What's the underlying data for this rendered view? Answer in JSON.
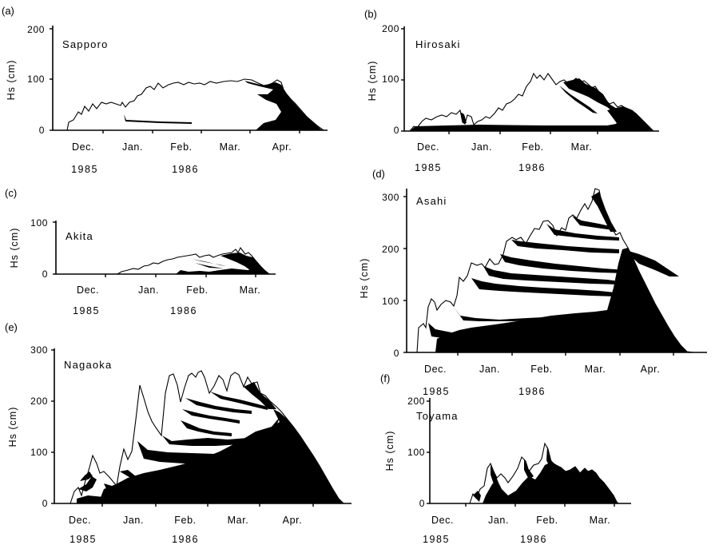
{
  "chart_data": [
    {
      "type": "area",
      "panel": "(a)",
      "station": "Sapporo",
      "ylabel": "Hs (cm)",
      "yticks": [
        "0",
        "100",
        "200"
      ],
      "ylim": [
        0,
        200
      ],
      "months": [
        "Dec.",
        "Jan.",
        "Feb.",
        "Mar.",
        "Apr."
      ],
      "years": [
        "1985",
        "1986"
      ],
      "x": [
        -5,
        0,
        5,
        10,
        15,
        20,
        25,
        30,
        35,
        40,
        45,
        50,
        55,
        60,
        65,
        70,
        75,
        80,
        85,
        90,
        95,
        100,
        105,
        110,
        115,
        118
      ],
      "snow_depth": [
        0,
        20,
        35,
        45,
        50,
        50,
        45,
        60,
        70,
        85,
        90,
        95,
        95,
        98,
        100,
        102,
        100,
        95,
        100,
        98,
        85,
        65,
        40,
        15,
        3,
        0
      ]
    },
    {
      "type": "area",
      "panel": "(b)",
      "station": "Hirosaki",
      "ylabel": "Hs (cm)",
      "yticks": [
        "0",
        "100",
        "200"
      ],
      "ylim": [
        0,
        200
      ],
      "months": [
        "Dec.",
        "Jan.",
        "Feb.",
        "Mar."
      ],
      "years": [
        "1985",
        "1986"
      ],
      "x": [
        -7,
        -5,
        0,
        5,
        10,
        15,
        20,
        25,
        30,
        35,
        40,
        45,
        50,
        55,
        60,
        65,
        70,
        75,
        80,
        85,
        90,
        95,
        100,
        106
      ],
      "snow_depth": [
        0,
        5,
        25,
        30,
        35,
        35,
        20,
        30,
        45,
        60,
        80,
        110,
        100,
        105,
        95,
        100,
        90,
        85,
        70,
        50,
        40,
        25,
        10,
        0
      ]
    },
    {
      "type": "area",
      "panel": "(c)",
      "station": "Akita",
      "ylabel": "Hs (cm)",
      "yticks": [
        "0",
        "100"
      ],
      "ylim": [
        0,
        100
      ],
      "months": [
        "Dec.",
        "Jan.",
        "Feb.",
        "Mar."
      ],
      "years": [
        "1985",
        "1986"
      ],
      "x": [
        14,
        20,
        25,
        30,
        35,
        40,
        45,
        50,
        55,
        60,
        65,
        70,
        75,
        80,
        84
      ],
      "snow_depth": [
        0,
        5,
        10,
        18,
        25,
        30,
        35,
        38,
        35,
        40,
        45,
        50,
        48,
        35,
        0
      ]
    },
    {
      "type": "area",
      "panel": "(d)",
      "station": "Asahi",
      "ylabel": "Hs (cm)",
      "yticks": [
        "0",
        "100",
        "200",
        "300"
      ],
      "ylim": [
        0,
        300
      ],
      "months": [
        "Dec.",
        "Jan.",
        "Feb.",
        "Mar.",
        "Apr."
      ],
      "years": [
        "1985",
        "1986"
      ],
      "x": [
        -20,
        -15,
        -10,
        -5,
        0,
        5,
        10,
        15,
        20,
        25,
        30,
        35,
        40,
        45,
        50,
        55,
        60,
        65,
        70,
        75,
        80,
        85,
        90,
        95,
        100,
        105,
        110,
        115,
        120,
        125,
        130
      ],
      "snow_depth": [
        0,
        50,
        90,
        100,
        80,
        90,
        110,
        150,
        170,
        160,
        180,
        200,
        210,
        230,
        250,
        240,
        250,
        270,
        290,
        310,
        270,
        250,
        240,
        230,
        210,
        180,
        150,
        110,
        70,
        30,
        0
      ]
    },
    {
      "type": "area",
      "panel": "(e)",
      "station": "Nagaoka",
      "ylabel": "Hs (cm)",
      "yticks": [
        "0",
        "100",
        "200",
        "300"
      ],
      "ylim": [
        0,
        300
      ],
      "months": [
        "Dec.",
        "Jan.",
        "Feb.",
        "Mar.",
        "Apr."
      ],
      "years": [
        "1985",
        "1986"
      ],
      "x": [
        -5,
        0,
        5,
        10,
        15,
        20,
        25,
        30,
        35,
        40,
        45,
        50,
        55,
        60,
        65,
        70,
        75,
        80,
        85,
        90,
        95,
        100,
        105,
        110,
        115,
        120
      ],
      "snow_depth": [
        0,
        25,
        90,
        50,
        40,
        110,
        220,
        120,
        250,
        160,
        240,
        250,
        220,
        250,
        250,
        240,
        240,
        220,
        200,
        190,
        170,
        150,
        110,
        70,
        30,
        0
      ]
    },
    {
      "type": "area",
      "panel": "(f)",
      "station": "Toyama",
      "ylabel": "Hs (cm)",
      "yticks": [
        "0",
        "100",
        "200"
      ],
      "ylim": [
        0,
        200
      ],
      "months": [
        "Dec.",
        "Jan.",
        "Feb.",
        "Mar."
      ],
      "years": [
        "1985",
        "1986"
      ],
      "x": [
        25,
        30,
        35,
        40,
        45,
        50,
        55,
        60,
        65,
        70,
        75,
        80,
        85,
        90,
        95,
        100,
        102
      ],
      "snow_depth": [
        0,
        25,
        70,
        45,
        55,
        85,
        60,
        110,
        80,
        60,
        50,
        45,
        55,
        60,
        40,
        20,
        0
      ]
    }
  ]
}
